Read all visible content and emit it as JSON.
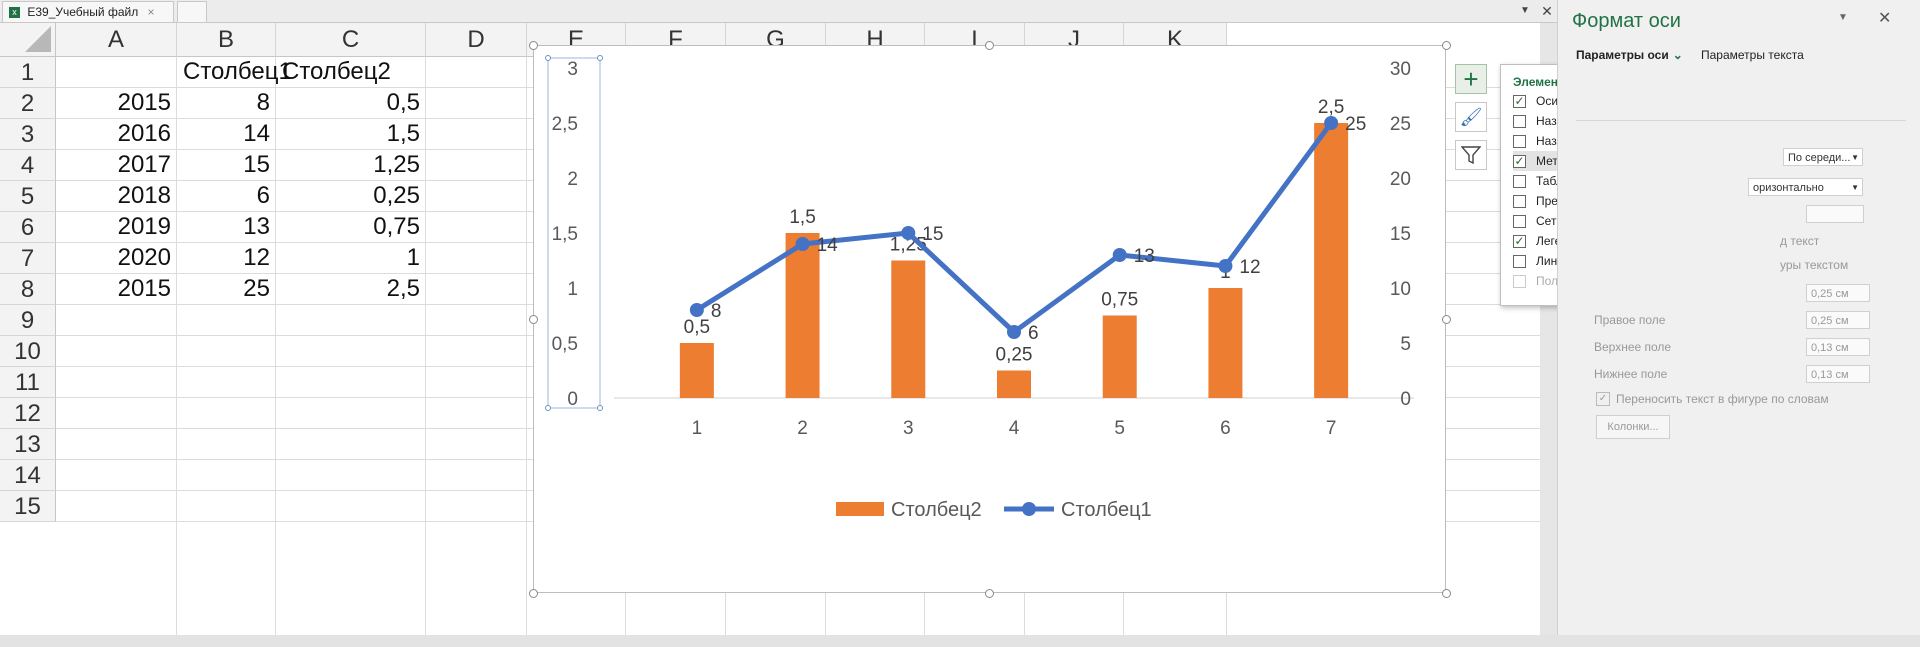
{
  "tabs": [
    {
      "label": "E39_Учебный файл",
      "close": "×"
    },
    {
      "label": ""
    }
  ],
  "columns": [
    "A",
    "B",
    "C",
    "D",
    "E",
    "F",
    "G",
    "H",
    "I",
    "J",
    "K"
  ],
  "rows": [
    "1",
    "2",
    "3",
    "4",
    "5",
    "6",
    "7",
    "8",
    "9",
    "10",
    "11",
    "12",
    "13",
    "14",
    "15"
  ],
  "table": {
    "headers": [
      "Столбец1",
      "Столбец2"
    ],
    "rows": [
      {
        "a": "2015",
        "b": "8",
        "c": "0,5"
      },
      {
        "a": "2016",
        "b": "14",
        "c": "1,5"
      },
      {
        "a": "2017",
        "b": "15",
        "c": "1,25"
      },
      {
        "a": "2018",
        "b": "6",
        "c": "0,25"
      },
      {
        "a": "2019",
        "b": "13",
        "c": "0,75"
      },
      {
        "a": "2020",
        "b": "12",
        "c": "1"
      },
      {
        "a": "2015",
        "b": "25",
        "c": "2,5"
      }
    ]
  },
  "chart_data": {
    "type": "bar+line",
    "categories": [
      "1",
      "2",
      "3",
      "4",
      "5",
      "6",
      "7"
    ],
    "series": [
      {
        "name": "Столбец2",
        "type": "bar",
        "axis": "left",
        "values": [
          0.5,
          1.5,
          1.25,
          0.25,
          0.75,
          1,
          2.5
        ],
        "labels": [
          "0,5",
          "1,5",
          "1,25",
          "0,25",
          "0,75",
          "1",
          "2,5"
        ],
        "color": "#ed7d31"
      },
      {
        "name": "Столбец1",
        "type": "line",
        "axis": "right",
        "values": [
          8,
          14,
          15,
          6,
          13,
          12,
          25
        ],
        "labels": [
          "8",
          "14",
          "15",
          "6",
          "13",
          "12",
          "25"
        ],
        "color": "#4472c4"
      }
    ],
    "left_axis": {
      "ylim": [
        0,
        3
      ],
      "ticks": [
        "0",
        "0,5",
        "1",
        "1,5",
        "2",
        "2,5",
        "3"
      ]
    },
    "right_axis": {
      "ylim": [
        0,
        30
      ],
      "ticks": [
        "0",
        "5",
        "10",
        "15",
        "20",
        "25",
        "30"
      ]
    },
    "legend": "bottom",
    "grid": false
  },
  "chart_elements_popup": {
    "title": "Элементы диаграммы",
    "items": [
      {
        "label": "Оси",
        "checked": true
      },
      {
        "label": "Названия осей",
        "checked": false
      },
      {
        "label": "Название диаграммы",
        "checked": false
      },
      {
        "label": "Метки данных",
        "checked": true,
        "highlighted": true
      },
      {
        "label": "Таблица данных",
        "checked": false
      },
      {
        "label": "Пределы погрешностей",
        "checked": false
      },
      {
        "label": "Сетка",
        "checked": false
      },
      {
        "label": "Легенда",
        "checked": true
      },
      {
        "label": "Линия тренда",
        "checked": false
      },
      {
        "label": "Полосы повышения и понижения",
        "checked": false,
        "disabled": true
      }
    ]
  },
  "format_pane": {
    "title": "Формат оси",
    "tab1": "Параметры оси",
    "tab2": "Параметры текста",
    "select1": "По середи...",
    "select2": "оризонтально",
    "text1": "д текст",
    "text2": "уры текстом",
    "margins": [
      {
        "label": "",
        "value": "0,25 см"
      },
      {
        "label": "Правое поле",
        "value": "0,25 см"
      },
      {
        "label": "Верхнее поле",
        "value": "0,13 см"
      },
      {
        "label": "Нижнее поле",
        "value": "0,13 см"
      }
    ],
    "wrap_label": "Переносить текст в фигуре по словам",
    "columns_button": "Колонки..."
  },
  "colors": {
    "accent": "#217346",
    "bar": "#ed7d31",
    "line": "#4472c4"
  }
}
